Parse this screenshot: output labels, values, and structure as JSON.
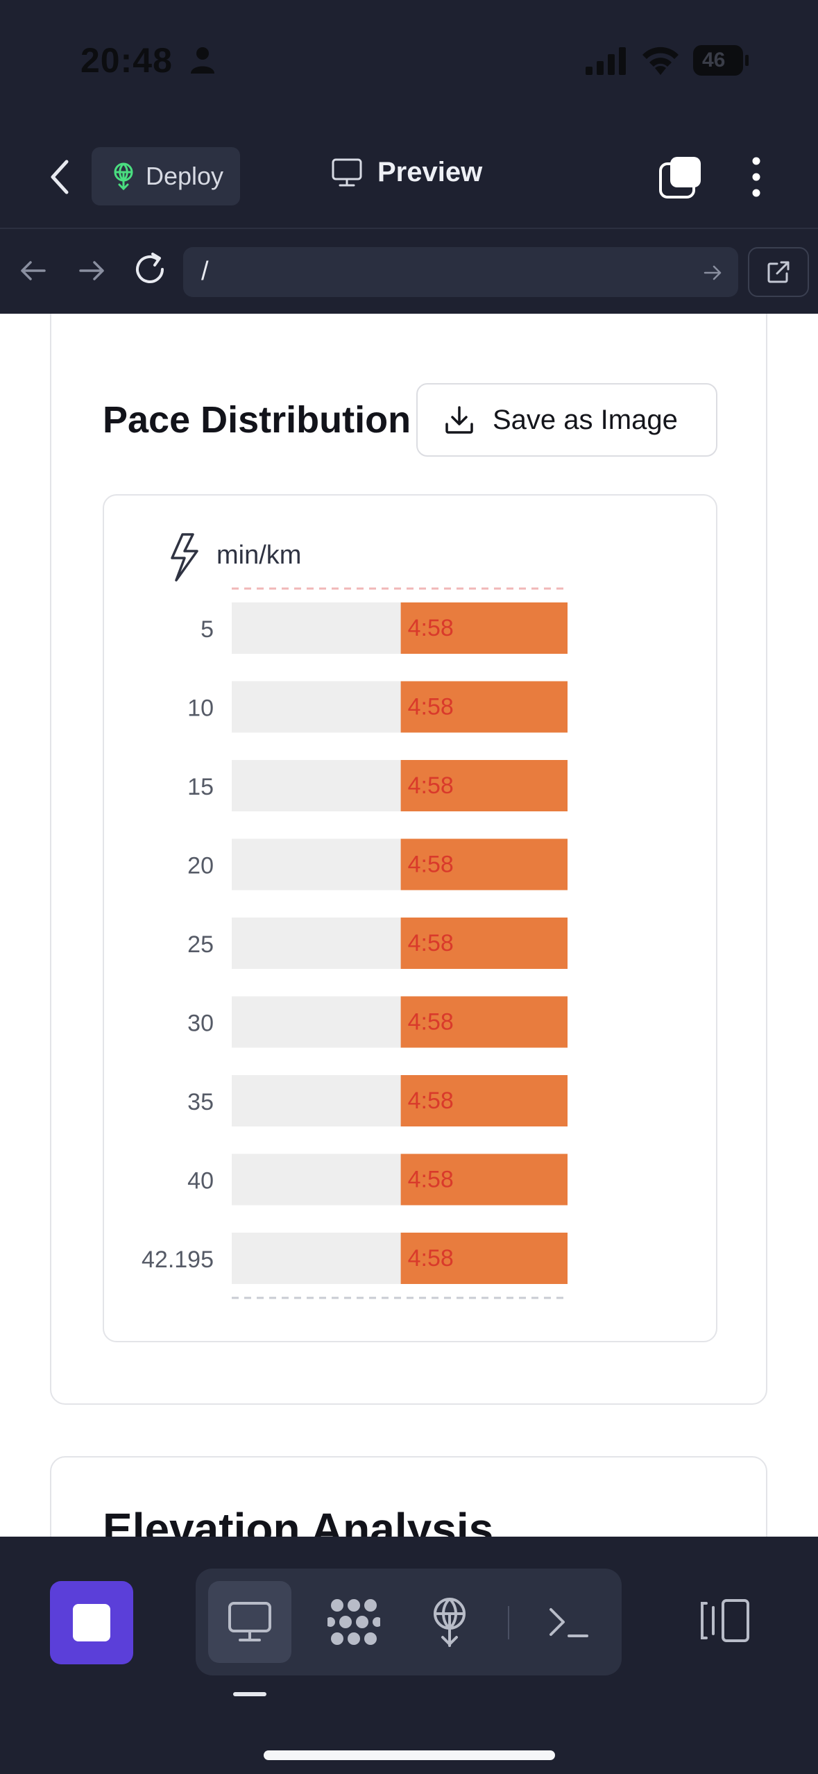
{
  "status_bar": {
    "time": "20:48",
    "battery": "46"
  },
  "header": {
    "deploy_label": "Deploy",
    "preview_label": "Preview"
  },
  "url_bar": {
    "url": "/"
  },
  "card": {
    "title": "Pace Distribution",
    "save_button": "Save as Image"
  },
  "chart_data": {
    "type": "bar",
    "unit_label": "min/km",
    "categories": [
      "5",
      "10",
      "15",
      "20",
      "25",
      "30",
      "35",
      "40",
      "42.195"
    ],
    "values": [
      "4:58",
      "4:58",
      "4:58",
      "4:58",
      "4:58",
      "4:58",
      "4:58",
      "4:58",
      "4:58"
    ],
    "colors": {
      "bar": "#e87c3e",
      "background": "#eeeeee",
      "label": "#d93a2b",
      "reference_line": "#f1b7b7"
    }
  },
  "next_card": {
    "title": "Elevation Analysis"
  },
  "colors": {
    "accent": "#5b3fd9",
    "app_bg": "#1e2130",
    "deploy_icon": "#4ade80"
  }
}
